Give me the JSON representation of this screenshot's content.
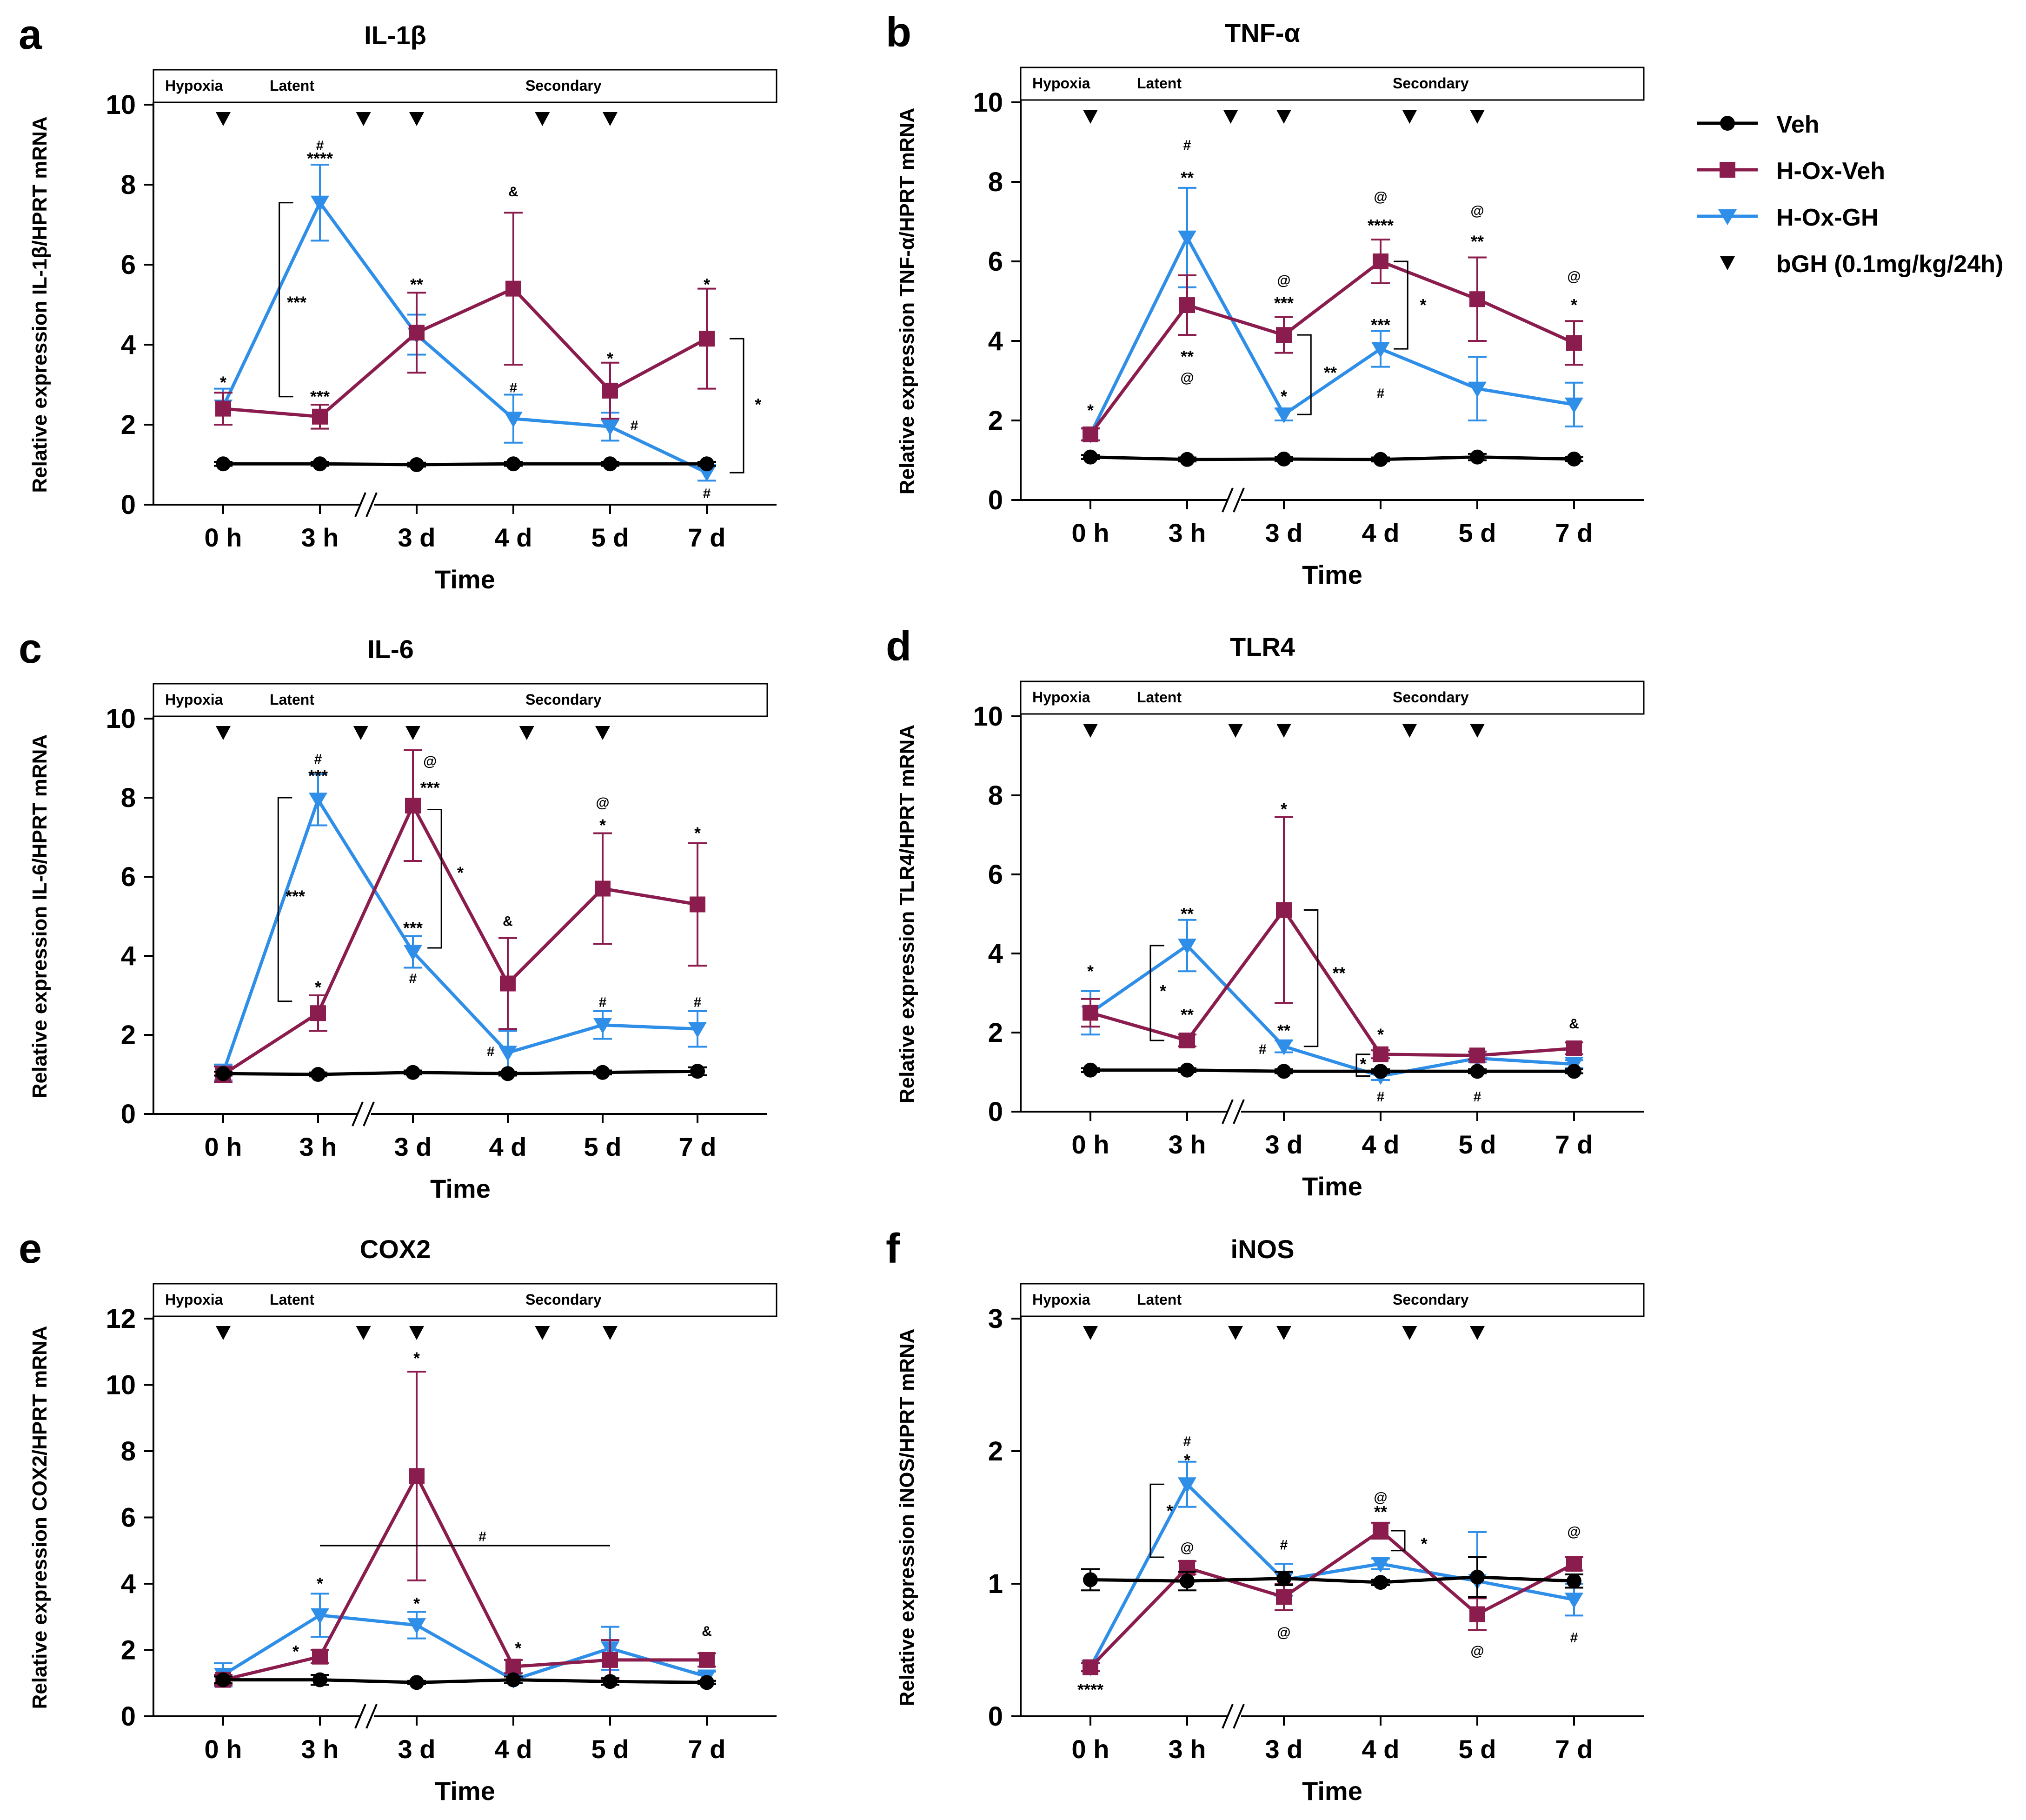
{
  "colors": {
    "veh": "#000000",
    "hox_veh": "#8b1d4e",
    "hox_gh": "#2f8fe8"
  },
  "legend": [
    {
      "label": "Veh",
      "marker": "circle",
      "color": "#000000"
    },
    {
      "label": "H-Ox-Veh",
      "marker": "square",
      "color": "#8b1d4e"
    },
    {
      "label": "H-Ox-GH",
      "marker": "triangle-down",
      "color": "#2f8fe8"
    },
    {
      "label": "bGH (0.1mg/kg/24h)",
      "marker": "arrow-down",
      "color": "#000000"
    }
  ],
  "phase_labels": [
    "Hypoxia",
    "Latent",
    "Secondary"
  ],
  "chart_data": [
    {
      "panel": "a",
      "type": "line",
      "title": "IL-1β",
      "xlabel": "Time",
      "ylabel": "Relative expression IL-1β/HPRT mRNA",
      "categories": [
        "0 h",
        "3 h",
        "3 d",
        "4 d",
        "5 d",
        "7 d"
      ],
      "ylim": [
        0,
        10
      ],
      "yticks": [
        0,
        2,
        4,
        6,
        8,
        10
      ],
      "break_after": 1,
      "injections": [
        0,
        1.45,
        2,
        3.3,
        4
      ],
      "series": [
        {
          "name": "Veh",
          "values": [
            1.02,
            1.02,
            1.0,
            1.02,
            1.02,
            1.02
          ],
          "err": [
            0.05,
            0.05,
            0.05,
            0.05,
            0.05,
            0.05
          ]
        },
        {
          "name": "H-Ox-Veh",
          "values": [
            2.4,
            2.2,
            4.3,
            5.4,
            2.85,
            4.15
          ],
          "err": [
            0.4,
            0.3,
            1.0,
            1.9,
            0.7,
            1.25
          ]
        },
        {
          "name": "H-Ox-GH",
          "values": [
            2.45,
            7.55,
            4.25,
            2.15,
            1.95,
            0.8
          ],
          "err": [
            0.45,
            0.95,
            0.5,
            0.6,
            0.35,
            0.2
          ]
        }
      ],
      "annotations": [
        {
          "text": "*",
          "x": 0,
          "y": 3.05
        },
        {
          "text": "#",
          "x": 1,
          "y": 9.0
        },
        {
          "text": "****",
          "x": 1,
          "y": 8.65
        },
        {
          "text": "***",
          "x": 1,
          "y": 2.7
        },
        {
          "text": "***",
          "x": 0.76,
          "y": 5.05
        },
        {
          "text": "**",
          "x": 2,
          "y": 5.5
        },
        {
          "text": "&",
          "x": 3,
          "y": 7.85
        },
        {
          "text": "#",
          "x": 3,
          "y": 2.95
        },
        {
          "text": "*",
          "x": 4,
          "y": 3.65
        },
        {
          "text": "#",
          "x": 4.25,
          "y": 2.0
        },
        {
          "text": "*",
          "x": 5,
          "y": 5.5
        },
        {
          "text": "#",
          "x": 5,
          "y": 0.3
        },
        {
          "text": "*",
          "x": 5.53,
          "y": 2.5
        }
      ],
      "brackets": [
        {
          "side": "left",
          "x": 0.58,
          "y1": 2.7,
          "y2": 7.55
        },
        {
          "side": "right",
          "x": 5.38,
          "y1": 0.8,
          "y2": 4.15
        }
      ]
    },
    {
      "panel": "b",
      "type": "line",
      "title": "TNF-α",
      "xlabel": "Time",
      "ylabel": "Relative expression TNF-α/HPRT mRNA",
      "categories": [
        "0 h",
        "3 h",
        "3 d",
        "4 d",
        "5 d",
        "7 d"
      ],
      "ylim": [
        0,
        10
      ],
      "yticks": [
        0,
        2,
        4,
        6,
        8,
        10
      ],
      "break_after": 1,
      "injections": [
        0,
        1.45,
        2,
        3.3,
        4
      ],
      "series": [
        {
          "name": "Veh",
          "values": [
            1.08,
            1.02,
            1.03,
            1.02,
            1.08,
            1.03
          ],
          "err": [
            0.05,
            0.05,
            0.05,
            0.05,
            0.08,
            0.05
          ]
        },
        {
          "name": "H-Ox-Veh",
          "values": [
            1.65,
            4.9,
            4.15,
            6.0,
            5.05,
            3.95
          ],
          "err": [
            0.15,
            0.75,
            0.45,
            0.55,
            1.05,
            0.55
          ]
        },
        {
          "name": "H-Ox-GH",
          "values": [
            1.65,
            6.6,
            2.15,
            3.8,
            2.8,
            2.4
          ],
          "err": [
            0.15,
            1.25,
            0.15,
            0.45,
            0.8,
            0.55
          ]
        }
      ],
      "annotations": [
        {
          "text": "*",
          "x": 0,
          "y": 2.25
        },
        {
          "text": "#",
          "x": 1,
          "y": 8.95
        },
        {
          "text": "**",
          "x": 1,
          "y": 8.1
        },
        {
          "text": "**",
          "x": 1,
          "y": 3.6
        },
        {
          "text": "@",
          "x": 1,
          "y": 3.1
        },
        {
          "text": "@",
          "x": 2,
          "y": 5.55
        },
        {
          "text": "***",
          "x": 2,
          "y": 4.95
        },
        {
          "text": "*",
          "x": 2,
          "y": 2.6
        },
        {
          "text": "**",
          "x": 2.48,
          "y": 3.2
        },
        {
          "text": "@",
          "x": 3,
          "y": 7.65
        },
        {
          "text": "****",
          "x": 3,
          "y": 6.9
        },
        {
          "text": "***",
          "x": 3,
          "y": 4.4
        },
        {
          "text": "#",
          "x": 3,
          "y": 2.7
        },
        {
          "text": "*",
          "x": 3.44,
          "y": 4.9
        },
        {
          "text": "@",
          "x": 4,
          "y": 7.3
        },
        {
          "text": "**",
          "x": 4,
          "y": 6.5
        },
        {
          "text": "@",
          "x": 5,
          "y": 5.65
        },
        {
          "text": "*",
          "x": 5,
          "y": 4.9
        }
      ],
      "brackets": [
        {
          "side": "right",
          "x": 2.28,
          "y1": 2.15,
          "y2": 4.15
        },
        {
          "side": "right",
          "x": 3.28,
          "y1": 3.8,
          "y2": 6.0
        }
      ]
    },
    {
      "panel": "c",
      "type": "line",
      "title": "IL-6",
      "xlabel": "Time",
      "ylabel": "Relative expression IL-6/HPRT mRNA",
      "categories": [
        "0 h",
        "3 h",
        "3 d",
        "4 d",
        "5 d",
        "7 d"
      ],
      "ylim": [
        0,
        10
      ],
      "yticks": [
        0,
        2,
        4,
        6,
        8,
        10
      ],
      "break_after": 1,
      "injections": [
        0,
        1.45,
        2,
        3.2,
        4
      ],
      "series": [
        {
          "name": "Veh",
          "values": [
            1.02,
            1.0,
            1.05,
            1.02,
            1.05,
            1.08
          ],
          "err": [
            0.05,
            0.05,
            0.05,
            0.05,
            0.05,
            0.1
          ]
        },
        {
          "name": "H-Ox-Veh",
          "values": [
            1.0,
            2.55,
            7.8,
            3.3,
            5.7,
            5.3
          ],
          "err": [
            0.2,
            0.45,
            1.4,
            1.15,
            1.4,
            1.55
          ]
        },
        {
          "name": "H-Ox-GH",
          "values": [
            1.05,
            7.95,
            4.1,
            1.55,
            2.25,
            2.15
          ],
          "err": [
            0.2,
            0.65,
            0.4,
            0.55,
            0.35,
            0.45
          ]
        }
      ],
      "annotations": [
        {
          "text": "#",
          "x": 1,
          "y": 9.0
        },
        {
          "text": "***",
          "x": 1,
          "y": 8.55
        },
        {
          "text": "*",
          "x": 1,
          "y": 3.2
        },
        {
          "text": "***",
          "x": 0.76,
          "y": 5.5
        },
        {
          "text": "@",
          "x": 2.18,
          "y": 8.95
        },
        {
          "text": "***",
          "x": 2.18,
          "y": 8.25
        },
        {
          "text": "***",
          "x": 2,
          "y": 4.7
        },
        {
          "text": "#",
          "x": 2,
          "y": 3.45
        },
        {
          "text": "*",
          "x": 2.5,
          "y": 6.1
        },
        {
          "text": "&",
          "x": 3,
          "y": 4.9
        },
        {
          "text": "#",
          "x": 2.82,
          "y": 1.6
        },
        {
          "text": "@",
          "x": 4,
          "y": 7.9
        },
        {
          "text": "*",
          "x": 4,
          "y": 7.3
        },
        {
          "text": "#",
          "x": 4,
          "y": 2.85
        },
        {
          "text": "*",
          "x": 5,
          "y": 7.1
        },
        {
          "text": "#",
          "x": 5,
          "y": 2.85
        }
      ],
      "brackets": [
        {
          "side": "left",
          "x": 0.58,
          "y1": 2.85,
          "y2": 8.0
        },
        {
          "side": "right",
          "x": 2.3,
          "y1": 4.2,
          "y2": 7.7
        }
      ]
    },
    {
      "panel": "d",
      "type": "line",
      "title": "TLR4",
      "xlabel": "Time",
      "ylabel": "Relative expression TLR4/HPRT mRNA",
      "categories": [
        "0 h",
        "3 h",
        "3 d",
        "4 d",
        "5 d",
        "7 d"
      ],
      "ylim": [
        0,
        10
      ],
      "yticks": [
        0,
        2,
        4,
        6,
        8,
        10
      ],
      "break_after": 1,
      "injections": [
        0,
        1.5,
        2,
        3.3,
        4
      ],
      "series": [
        {
          "name": "Veh",
          "values": [
            1.05,
            1.05,
            1.02,
            1.02,
            1.02,
            1.02
          ],
          "err": [
            0.05,
            0.05,
            0.05,
            0.05,
            0.05,
            0.05
          ]
        },
        {
          "name": "H-Ox-Veh",
          "values": [
            2.5,
            1.8,
            5.1,
            1.45,
            1.42,
            1.6
          ],
          "err": [
            0.35,
            0.15,
            2.35,
            0.1,
            0.1,
            0.15
          ]
        },
        {
          "name": "H-Ox-GH",
          "values": [
            2.5,
            4.2,
            1.65,
            0.9,
            1.35,
            1.2
          ],
          "err": [
            0.55,
            0.65,
            0.15,
            0.1,
            0.1,
            0.1
          ]
        }
      ],
      "annotations": [
        {
          "text": "*",
          "x": 0,
          "y": 3.55
        },
        {
          "text": "**",
          "x": 1,
          "y": 5.0
        },
        {
          "text": "*",
          "x": 0.75,
          "y": 3.05
        },
        {
          "text": "**",
          "x": 1,
          "y": 2.45
        },
        {
          "text": "*",
          "x": 2,
          "y": 7.65
        },
        {
          "text": "**",
          "x": 2,
          "y": 2.05
        },
        {
          "text": "#",
          "x": 1.78,
          "y": 1.6
        },
        {
          "text": "**",
          "x": 2.57,
          "y": 3.5
        },
        {
          "text": "*",
          "x": 3,
          "y": 1.95
        },
        {
          "text": "*",
          "x": 2.82,
          "y": 1.2
        },
        {
          "text": "#",
          "x": 3,
          "y": 0.4
        },
        {
          "text": "#",
          "x": 4,
          "y": 0.4
        },
        {
          "text": "&",
          "x": 5,
          "y": 2.25
        }
      ],
      "brackets": [
        {
          "side": "left",
          "x": 0.62,
          "y1": 1.8,
          "y2": 4.2
        },
        {
          "side": "right",
          "x": 2.35,
          "y1": 1.65,
          "y2": 5.1
        },
        {
          "side": "left",
          "x": 2.75,
          "y1": 0.9,
          "y2": 1.45
        }
      ]
    },
    {
      "panel": "e",
      "type": "line",
      "title": "COX2",
      "xlabel": "Time",
      "ylabel": "Relative expression COX2/HPRT mRNA",
      "categories": [
        "0 h",
        "3 h",
        "3 d",
        "4 d",
        "5 d",
        "7 d"
      ],
      "ylim": [
        0,
        12
      ],
      "yticks": [
        0,
        2,
        4,
        6,
        8,
        10,
        12
      ],
      "break_after": 1,
      "injections": [
        0,
        1.45,
        2,
        3.3,
        4
      ],
      "series": [
        {
          "name": "Veh",
          "values": [
            1.1,
            1.1,
            1.02,
            1.1,
            1.05,
            1.02
          ],
          "err": [
            0.1,
            0.15,
            0.05,
            0.1,
            0.1,
            0.05
          ]
        },
        {
          "name": "H-Ox-Veh",
          "values": [
            1.1,
            1.8,
            7.25,
            1.5,
            1.7,
            1.7
          ],
          "err": [
            0.15,
            0.2,
            3.15,
            0.2,
            0.6,
            0.2
          ]
        },
        {
          "name": "H-Ox-GH",
          "values": [
            1.25,
            3.05,
            2.75,
            1.1,
            2.05,
            1.2
          ],
          "err": [
            0.35,
            0.65,
            0.4,
            0.1,
            0.65,
            0.15
          ]
        }
      ],
      "annotations": [
        {
          "text": "*",
          "x": 1,
          "y": 4.0
        },
        {
          "text": "*",
          "x": 0.75,
          "y": 1.95
        },
        {
          "text": "*",
          "x": 2,
          "y": 10.8
        },
        {
          "text": "*",
          "x": 2,
          "y": 3.4
        },
        {
          "text": "#",
          "x": 2.68,
          "y": 5.45
        },
        {
          "text": "*",
          "x": 3.05,
          "y": 2.05
        },
        {
          "text": "&",
          "x": 5,
          "y": 2.6
        }
      ],
      "hlines": [
        {
          "x1": 1,
          "x2": 4,
          "y": 5.15
        }
      ],
      "brackets": []
    },
    {
      "panel": "f",
      "type": "line",
      "title": "iNOS",
      "xlabel": "Time",
      "ylabel": "Relative expression iNOS/HPRT mRNA",
      "categories": [
        "0 h",
        "3 h",
        "3 d",
        "4 d",
        "5 d",
        "7 d"
      ],
      "ylim": [
        0,
        3
      ],
      "yticks": [
        0,
        1,
        2,
        3
      ],
      "break_after": 1,
      "injections": [
        0,
        1.5,
        2,
        3.3,
        4
      ],
      "series": [
        {
          "name": "Veh",
          "values": [
            1.03,
            1.02,
            1.04,
            1.01,
            1.05,
            1.02
          ],
          "err": [
            0.08,
            0.07,
            0.05,
            0.02,
            0.15,
            0.05
          ]
        },
        {
          "name": "H-Ox-Veh",
          "values": [
            0.37,
            1.12,
            0.9,
            1.4,
            0.77,
            1.15
          ],
          "err": [
            0.03,
            0.05,
            0.1,
            0.06,
            0.12,
            0.05
          ]
        },
        {
          "name": "H-Ox-GH",
          "values": [
            0.37,
            1.75,
            1.03,
            1.15,
            1.02,
            0.88
          ],
          "err": [
            0.03,
            0.17,
            0.12,
            0.04,
            0.37,
            0.12
          ]
        }
      ],
      "annotations": [
        {
          "text": "****",
          "x": 0,
          "y": 0.2
        },
        {
          "text": "#",
          "x": 1,
          "y": 2.08
        },
        {
          "text": "*",
          "x": 1,
          "y": 1.93
        },
        {
          "text": "@",
          "x": 1,
          "y": 1.28
        },
        {
          "text": "*",
          "x": 0.82,
          "y": 1.55
        },
        {
          "text": "#",
          "x": 2,
          "y": 1.3
        },
        {
          "text": "@",
          "x": 2,
          "y": 0.64
        },
        {
          "text": "@",
          "x": 3,
          "y": 1.66
        },
        {
          "text": "**",
          "x": 3,
          "y": 1.54
        },
        {
          "text": "*",
          "x": 3.45,
          "y": 1.3
        },
        {
          "text": "@",
          "x": 4,
          "y": 0.5
        },
        {
          "text": "@",
          "x": 5,
          "y": 1.4
        },
        {
          "text": "#",
          "x": 5,
          "y": 0.6
        }
      ],
      "brackets": [
        {
          "side": "left",
          "x": 0.62,
          "y1": 1.2,
          "y2": 1.75
        },
        {
          "side": "right",
          "x": 3.25,
          "y1": 1.25,
          "y2": 1.4
        }
      ]
    }
  ]
}
